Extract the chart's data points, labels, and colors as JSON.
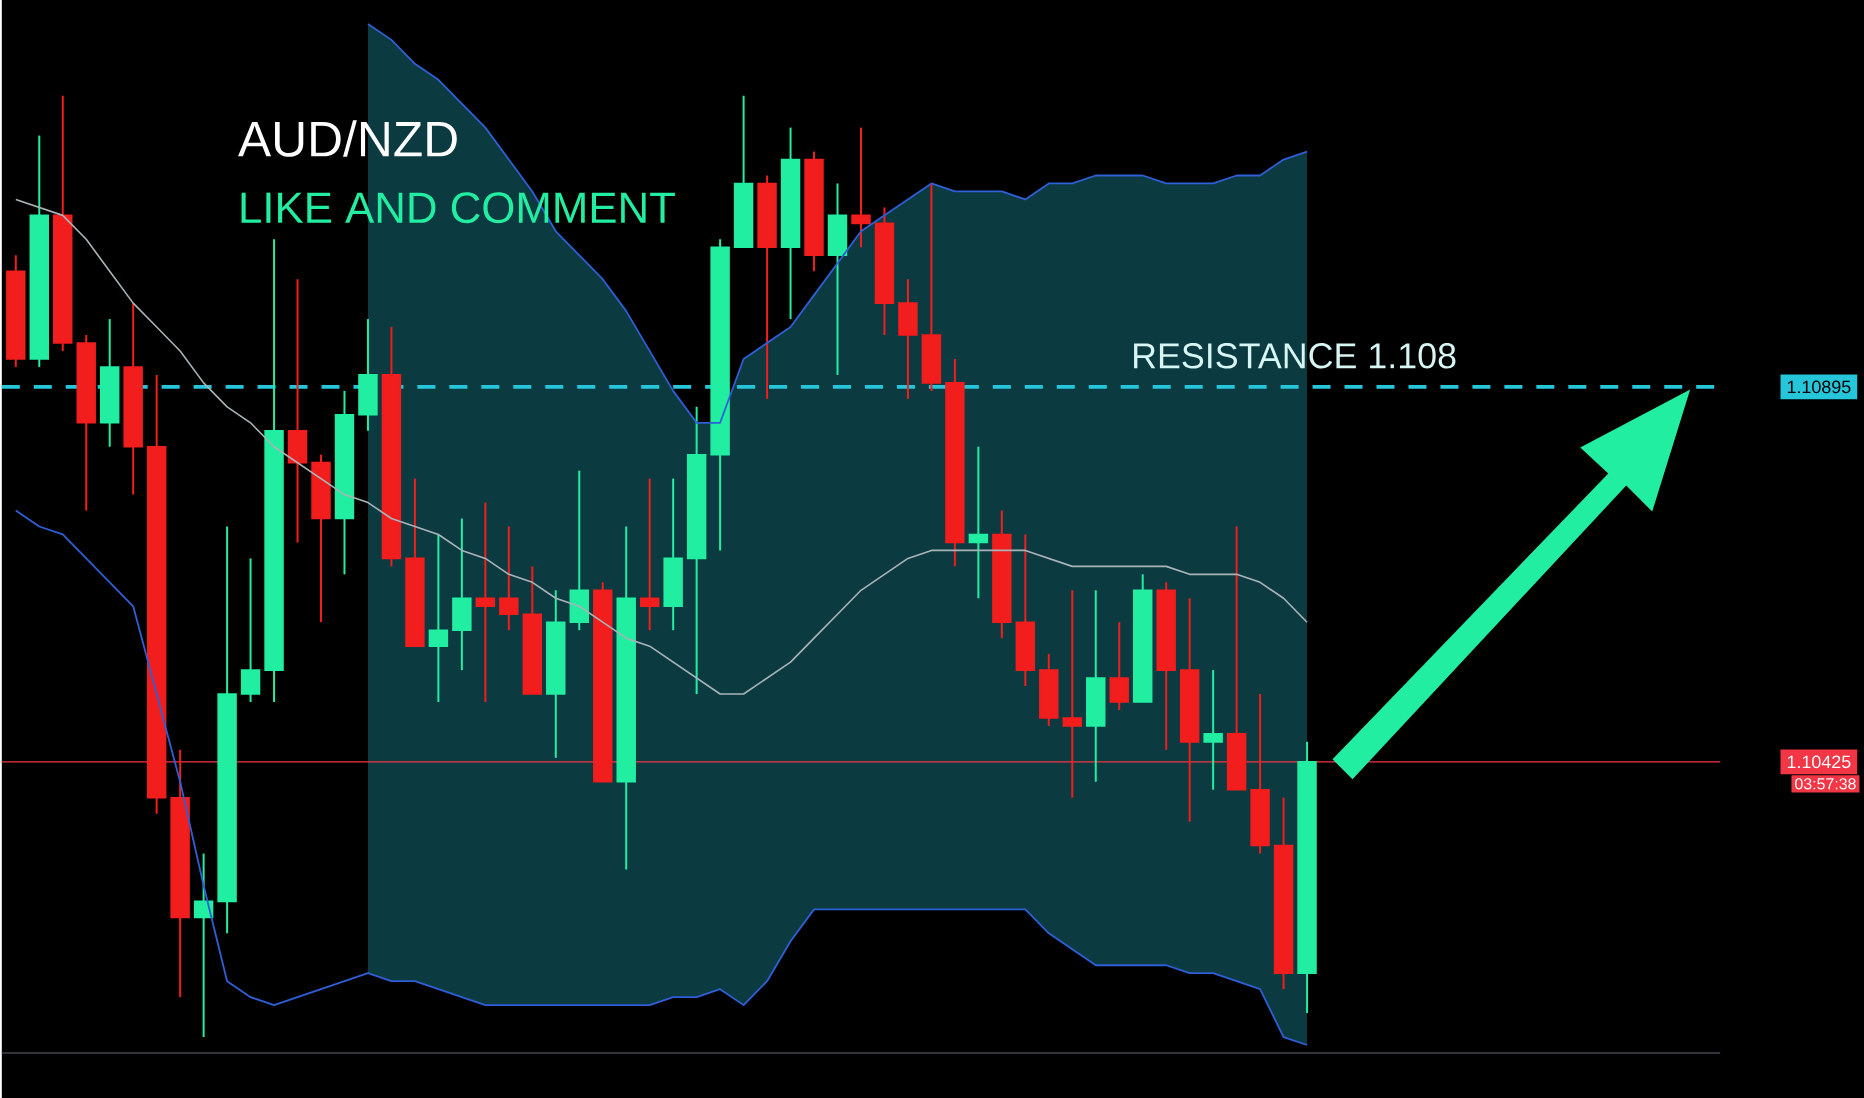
{
  "chart_data": {
    "type": "candlestick",
    "title": "AUD/NZD",
    "subtitle": "LIKE AND COMMENT",
    "annotations": [
      "RESISTANCE 1.108",
      "03:57:38"
    ],
    "categories": [
      null,
      null,
      null,
      null,
      null,
      null,
      null,
      null,
      null,
      null,
      null,
      null,
      null,
      null,
      null,
      null,
      null,
      null,
      null,
      null,
      null,
      null,
      null,
      null,
      null,
      null,
      null,
      null,
      null,
      null,
      null,
      null,
      null,
      null,
      null,
      null,
      null,
      null,
      null,
      null,
      null,
      null,
      null,
      null,
      null,
      null,
      null,
      null,
      null,
      null,
      null,
      null,
      null,
      null,
      null,
      null
    ],
    "ohlc": [
      [
        1.1104,
        1.1106,
        1.1092,
        1.1093
      ],
      [
        1.1093,
        1.1121,
        1.1092,
        1.1111
      ],
      [
        1.1111,
        1.1126,
        1.1094,
        1.1095
      ],
      [
        1.1095,
        1.1096,
        1.1074,
        1.1085
      ],
      [
        1.1085,
        1.1098,
        1.1082,
        1.1092
      ],
      [
        1.1092,
        1.11,
        1.1076,
        1.1082
      ],
      [
        1.1082,
        1.1091,
        1.1036,
        1.1038
      ],
      [
        1.1038,
        1.1044,
        1.1013,
        1.1023
      ],
      [
        1.1023,
        1.1031,
        1.1008,
        1.1025
      ],
      [
        1.1025,
        1.1072,
        1.1021,
        1.1051
      ],
      [
        1.1051,
        1.1068,
        1.105,
        1.1054
      ],
      [
        1.1054,
        1.1108,
        1.105,
        1.1084
      ],
      [
        1.1084,
        1.1103,
        1.107,
        1.108
      ],
      [
        1.108,
        1.1081,
        1.106,
        1.1073
      ],
      [
        1.1073,
        1.1089,
        1.1066,
        1.1086
      ],
      [
        1.1086,
        1.1098,
        1.1084,
        1.1091
      ],
      [
        1.1091,
        1.1097,
        1.1067,
        1.1068
      ],
      [
        1.1068,
        1.1078,
        1.1057,
        1.1057
      ],
      [
        1.1057,
        1.1071,
        1.105,
        1.1059
      ],
      [
        1.1059,
        1.1073,
        1.1054,
        1.1063
      ],
      [
        1.1063,
        1.1075,
        1.105,
        1.1062
      ],
      [
        1.1063,
        1.1072,
        1.1059,
        1.1061
      ],
      [
        1.1061,
        1.1067,
        1.1051,
        1.1051
      ],
      [
        1.1051,
        1.1064,
        1.1043,
        1.106
      ],
      [
        1.106,
        1.1079,
        1.1059,
        1.1064
      ],
      [
        1.1064,
        1.1065,
        1.104,
        1.104
      ],
      [
        1.104,
        1.1072,
        1.1029,
        1.1063
      ],
      [
        1.1063,
        1.1078,
        1.1059,
        1.1062
      ],
      [
        1.1062,
        1.1078,
        1.1059,
        1.1068
      ],
      [
        1.1068,
        1.1087,
        1.1051,
        1.1081
      ],
      [
        1.1081,
        1.1108,
        1.1069,
        1.1107
      ],
      [
        1.1107,
        1.1126,
        1.1107,
        1.1115
      ],
      [
        1.1115,
        1.1116,
        1.1088,
        1.1107
      ],
      [
        1.1107,
        1.1122,
        1.1098,
        1.1118
      ],
      [
        1.1118,
        1.1119,
        1.1104,
        1.1106
      ],
      [
        1.1106,
        1.1115,
        1.1091,
        1.1111
      ],
      [
        1.1111,
        1.1122,
        1.1107,
        1.111
      ],
      [
        1.111,
        1.1112,
        1.1096,
        1.11
      ],
      [
        1.11,
        1.1103,
        1.1088,
        1.1096
      ],
      [
        1.1096,
        1.1115,
        1.1089,
        1.109
      ],
      [
        1.109,
        1.1093,
        1.1067,
        1.107
      ],
      [
        1.107,
        1.1082,
        1.1063,
        1.1071
      ],
      [
        1.1071,
        1.1074,
        1.1058,
        1.106
      ],
      [
        1.106,
        1.1071,
        1.1052,
        1.1054
      ],
      [
        1.1054,
        1.1056,
        1.1047,
        1.1048
      ],
      [
        1.1048,
        1.1064,
        1.1038,
        1.1047
      ],
      [
        1.1047,
        1.1064,
        1.104,
        1.1053
      ],
      [
        1.1053,
        1.106,
        1.1049,
        1.105
      ],
      [
        1.105,
        1.1066,
        1.105,
        1.1064
      ],
      [
        1.1064,
        1.1065,
        1.1044,
        1.1054
      ],
      [
        1.1054,
        1.1063,
        1.1035,
        1.1045
      ],
      [
        1.1045,
        1.1054,
        1.1039,
        1.1046
      ],
      [
        1.1046,
        1.1072,
        1.1039,
        1.1039
      ],
      [
        1.1039,
        1.1051,
        1.1031,
        1.1032
      ],
      [
        1.1032,
        1.1038,
        1.1014,
        1.1016
      ],
      [
        1.1016,
        1.1045,
        1.1011,
        1.10425
      ]
    ],
    "colors": [
      "#f21d1d",
      "#22eea2",
      "#f21d1d",
      "#f21d1d",
      "#22eea2",
      "#f21d1d",
      "#f21d1d",
      "#f21d1d",
      "#22eea2",
      "#22eea2",
      "#22eea2",
      "#22eea2",
      "#f21d1d",
      "#f21d1d",
      "#22eea2",
      "#22eea2",
      "#f21d1d",
      "#f21d1d",
      "#22eea2",
      "#22eea2",
      "#f21d1d",
      "#f21d1d",
      "#f21d1d",
      "#22eea2",
      "#22eea2",
      "#f21d1d",
      "#22eea2",
      "#f21d1d",
      "#22eea2",
      "#22eea2",
      "#22eea2",
      "#22eea2",
      "#f21d1d",
      "#22eea2",
      "#f21d1d",
      "#22eea2",
      "#f21d1d",
      "#f21d1d",
      "#f21d1d",
      "#f21d1d",
      "#f21d1d",
      "#22eea2",
      "#f21d1d",
      "#f21d1d",
      "#f21d1d",
      "#f21d1d",
      "#22eea2",
      "#f21d1d",
      "#22eea2",
      "#f21d1d",
      "#f21d1d",
      "#22eea2",
      "#f21d1d",
      "#f21d1d",
      "#f21d1d",
      "#22eea2"
    ],
    "series": [
      {
        "type": "line",
        "color": "#a9b4b8",
        "values": [
          1.1113,
          1.1112,
          1.1111,
          1.1108,
          1.1104,
          1.11,
          1.1097,
          1.1094,
          1.109,
          1.1087,
          1.1085,
          1.1082,
          1.108,
          1.1078,
          1.1076,
          1.1075,
          1.1073,
          1.1072,
          1.1071,
          1.1069,
          1.1068,
          1.1066,
          1.1065,
          1.1063,
          1.1062,
          1.106,
          1.1058,
          1.1057,
          1.1055,
          1.1053,
          1.1051,
          1.1051,
          1.1053,
          1.1055,
          1.1058,
          1.1061,
          1.1064,
          1.1066,
          1.1068,
          1.1069,
          1.1069,
          1.1069,
          1.1069,
          1.1069,
          1.1068,
          1.1067,
          1.1067,
          1.1067,
          1.1067,
          1.1067,
          1.1066,
          1.1066,
          1.1066,
          1.1065,
          1.1063,
          1.106
        ],
        "lower": [
          null,
          null,
          null,
          null,
          null,
          null,
          null,
          null,
          null,
          null,
          null,
          null,
          null,
          null,
          null,
          1.1016,
          1.1015,
          1.1015,
          1.1014,
          1.1013,
          1.1012,
          1.1012,
          1.1012,
          1.1012,
          1.1012,
          1.1012,
          1.1012,
          1.1012,
          1.1013,
          1.1013,
          1.1014,
          1.1012,
          1.1015,
          1.102,
          1.1024,
          1.1024,
          1.1024,
          1.1024,
          1.1024,
          1.1024,
          1.1024,
          1.1024,
          1.1024,
          1.1024,
          1.1021,
          1.1019,
          1.1017,
          1.1017,
          1.1017,
          1.1017,
          1.1016,
          1.1016,
          1.1015,
          1.1014,
          1.1008,
          1.1007
        ],
        "upper": [
          null,
          null,
          null,
          null,
          null,
          null,
          null,
          null,
          null,
          null,
          null,
          null,
          null,
          null,
          null,
          1.1135,
          1.1133,
          1.113,
          1.1128,
          1.1125,
          1.1122,
          1.1118,
          1.1114,
          1.1109,
          1.1106,
          1.1103,
          1.1099,
          1.1094,
          1.1089,
          1.1085,
          1.1085,
          1.1093,
          1.1095,
          1.1097,
          1.1101,
          1.1105,
          1.1109,
          1.1111,
          1.1113,
          1.1115,
          1.1114,
          1.1114,
          1.1114,
          1.1113,
          1.1115,
          1.1115,
          1.1116,
          1.1116,
          1.1116,
          1.1115,
          1.1115,
          1.1115,
          1.1116,
          1.1116,
          1.1118,
          1.1119
        ]
      },
      {
        "type": "line",
        "color": "#2f5fd6",
        "values": [
          1.1074,
          1.1072,
          1.1071,
          1.1068,
          1.1065,
          1.1062,
          1.1051,
          1.104,
          1.1027,
          1.1015,
          1.1013,
          1.1012,
          1.1013,
          1.1014,
          1.1015,
          1.1016,
          1.1015,
          1.1015,
          1.1014,
          1.1013,
          1.1012,
          1.1012,
          1.1012,
          1.1012,
          1.1012,
          1.1012,
          1.1012,
          1.1012,
          1.1013,
          1.1013,
          1.1014,
          1.1012,
          1.1015,
          1.102,
          1.1024,
          1.1024,
          1.1024,
          1.1024,
          1.1024,
          1.1024,
          1.1024,
          1.1024,
          1.1024,
          1.1024,
          1.1021,
          1.1019,
          1.1017,
          1.1017,
          1.1017,
          1.1017,
          1.1016,
          1.1016,
          1.1015,
          1.1014,
          1.1008,
          1.1007
        ]
      },
      {
        "type": "line",
        "color": "#2f5fd6",
        "values": [
          null,
          null,
          null,
          null,
          null,
          null,
          null,
          null,
          null,
          null,
          null,
          null,
          null,
          null,
          null,
          1.1135,
          1.1133,
          1.113,
          1.1128,
          1.1125,
          1.1122,
          1.1118,
          1.1114,
          1.1109,
          1.1106,
          1.1103,
          1.1099,
          1.1094,
          1.1089,
          1.1085,
          1.1085,
          1.1093,
          1.1095,
          1.1097,
          1.1101,
          1.1105,
          1.1109,
          1.1111,
          1.1113,
          1.1115,
          1.1114,
          1.1114,
          1.1114,
          1.1113,
          1.1115,
          1.1115,
          1.1116,
          1.1116,
          1.1116,
          1.1115,
          1.1115,
          1.1115,
          1.1116,
          1.1116,
          1.1118,
          1.1119
        ]
      }
    ],
    "ylim": [
      1.1006,
      1.1138
    ],
    "yticks": [
      {
        "value": 1.10895,
        "label": "1.10895"
      },
      {
        "value": 1.10425,
        "label": "1.10425"
      }
    ],
    "ref_lines": [
      {
        "axis": "y",
        "value": 1.10895,
        "color": "#26c6da",
        "line_style": "dashed"
      },
      {
        "axis": "y",
        "value": 1.10425,
        "color": "#f23645",
        "line_style": "solid"
      }
    ]
  }
}
